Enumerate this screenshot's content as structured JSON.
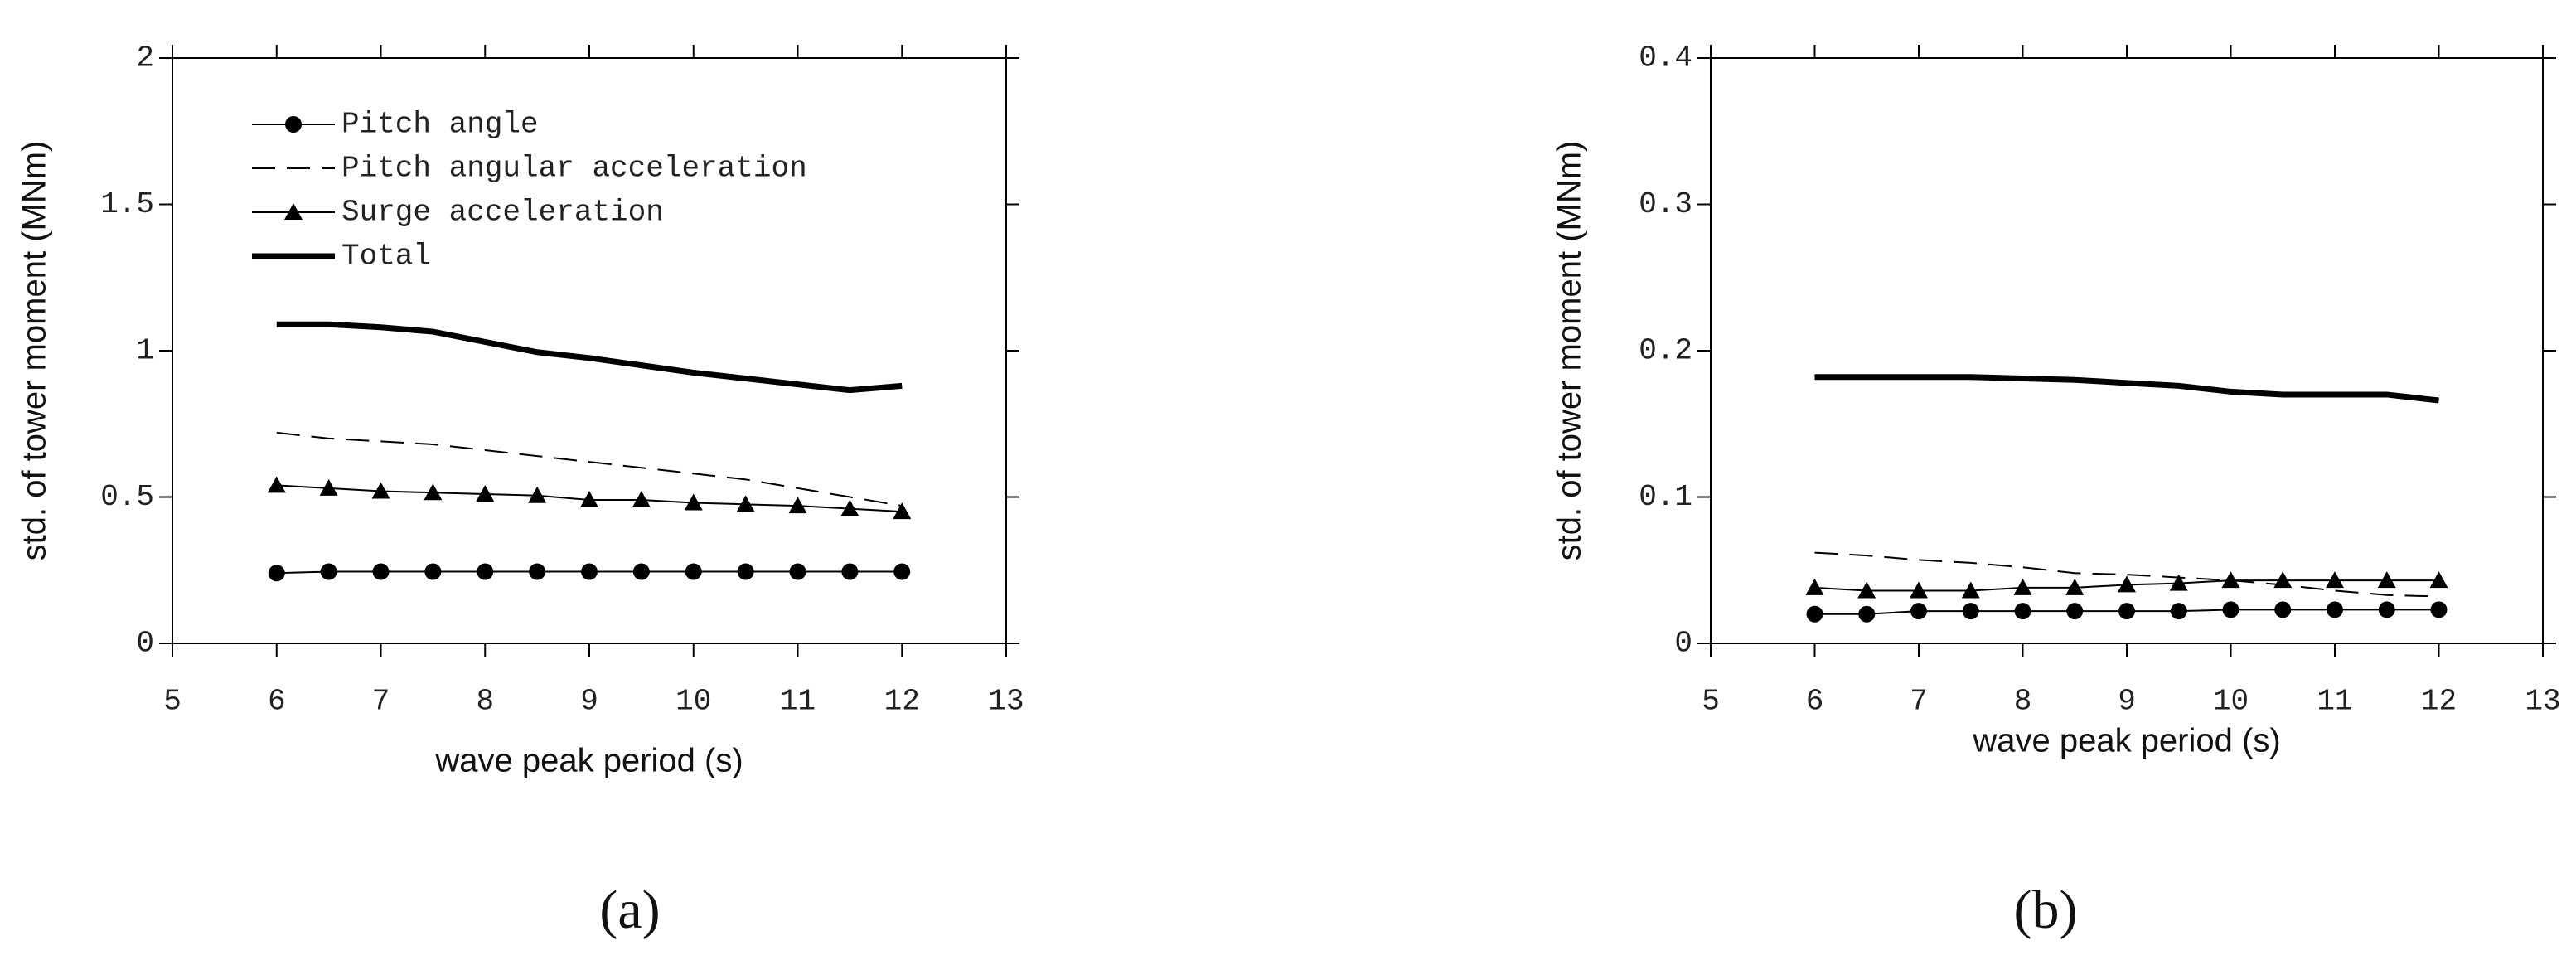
{
  "chart_data": [
    {
      "type": "line",
      "panel_label": "(a)",
      "xlabel": "wave peak period (s)",
      "ylabel": "std. of tower moment (MNm)",
      "x": [
        6,
        6.5,
        7,
        7.5,
        8,
        8.5,
        9,
        9.5,
        10,
        10.5,
        11,
        11.5,
        12
      ],
      "xlim": [
        5,
        13
      ],
      "xticks": [
        5,
        6,
        7,
        8,
        9,
        10,
        11,
        12,
        13
      ],
      "ylim": [
        0,
        2
      ],
      "yticks": [
        0,
        0.5,
        1,
        1.5,
        2
      ],
      "legend": "upper left",
      "series": [
        {
          "name": "Pitch angle",
          "color": "#000000",
          "marker": "circle",
          "dash": "solid",
          "linewidth": 2,
          "values": [
            0.24,
            0.245,
            0.245,
            0.245,
            0.245,
            0.245,
            0.245,
            0.245,
            0.245,
            0.245,
            0.245,
            0.245,
            0.245
          ]
        },
        {
          "name": "Pitch angular acceleration",
          "color": "#000000",
          "marker": "none",
          "dash": "dashed",
          "linewidth": 2,
          "values": [
            0.72,
            0.7,
            0.69,
            0.68,
            0.66,
            0.64,
            0.62,
            0.6,
            0.58,
            0.56,
            0.53,
            0.5,
            0.47
          ]
        },
        {
          "name": "Surge acceleration",
          "color": "#000000",
          "marker": "triangle",
          "dash": "solid",
          "linewidth": 2,
          "values": [
            0.54,
            0.53,
            0.52,
            0.515,
            0.51,
            0.505,
            0.49,
            0.49,
            0.48,
            0.475,
            0.47,
            0.46,
            0.45
          ]
        },
        {
          "name": "Total",
          "color": "#000000",
          "marker": "none",
          "dash": "solid",
          "linewidth": 7,
          "values": [
            1.09,
            1.09,
            1.08,
            1.065,
            1.03,
            0.995,
            0.975,
            0.95,
            0.925,
            0.905,
            0.885,
            0.865,
            0.88
          ]
        }
      ]
    },
    {
      "type": "line",
      "panel_label": "(b)",
      "xlabel": "wave peak period (s)",
      "ylabel": "std. of tower moment (MNm)",
      "x": [
        6,
        6.5,
        7,
        7.5,
        8,
        8.5,
        9,
        9.5,
        10,
        10.5,
        11,
        11.5,
        12
      ],
      "xlim": [
        5,
        13
      ],
      "xticks": [
        5,
        6,
        7,
        8,
        9,
        10,
        11,
        12,
        13
      ],
      "ylim": [
        0,
        0.4
      ],
      "yticks": [
        0,
        0.1,
        0.2,
        0.3,
        0.4
      ],
      "legend": "none",
      "series": [
        {
          "color": "#000000",
          "marker": "circle",
          "dash": "solid",
          "linewidth": 2,
          "values": [
            0.02,
            0.02,
            0.022,
            0.022,
            0.022,
            0.022,
            0.022,
            0.022,
            0.023,
            0.023,
            0.023,
            0.023,
            0.023
          ]
        },
        {
          "color": "#000000",
          "marker": "none",
          "dash": "dashed",
          "linewidth": 2,
          "values": [
            0.062,
            0.06,
            0.057,
            0.055,
            0.052,
            0.048,
            0.047,
            0.045,
            0.043,
            0.04,
            0.036,
            0.033,
            0.032
          ]
        },
        {
          "color": "#000000",
          "marker": "triangle",
          "dash": "solid",
          "linewidth": 2,
          "values": [
            0.038,
            0.036,
            0.036,
            0.036,
            0.038,
            0.038,
            0.04,
            0.041,
            0.043,
            0.043,
            0.043,
            0.043,
            0.043
          ]
        },
        {
          "color": "#000000",
          "marker": "none",
          "dash": "solid",
          "linewidth": 7,
          "values": [
            0.182,
            0.182,
            0.182,
            0.182,
            0.181,
            0.18,
            0.178,
            0.176,
            0.172,
            0.17,
            0.17,
            0.17,
            0.166
          ]
        }
      ]
    }
  ]
}
